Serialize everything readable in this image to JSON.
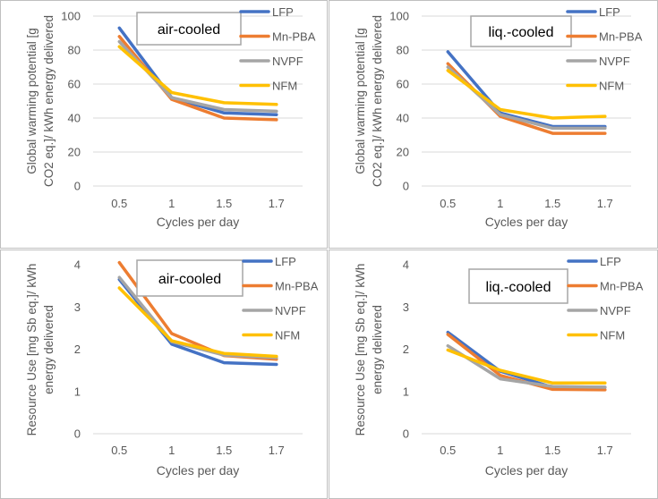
{
  "colors": {
    "LFP": "#4472C4",
    "Mn-PBA": "#ED7D31",
    "NVPF": "#A5A5A5",
    "NFM": "#FFC000",
    "panel_border": "#BFBFBF",
    "gridline": "#D9D9D9",
    "text": "#595959",
    "title_border": "#A6A6A6"
  },
  "chart_data": [
    {
      "type": "line",
      "title": "air-cooled",
      "xlabel": "Cycles per day",
      "ylabel_lines": [
        "Global warming potential [g",
        "CO2 eq.]/ kWh energy delivered"
      ],
      "categories": [
        "0.5",
        "1",
        "1.5",
        "1.7"
      ],
      "yticks": [
        "0",
        "20",
        "40",
        "60",
        "80",
        "100"
      ],
      "ylim": [
        0,
        100
      ],
      "grid": true,
      "legend": "top-right",
      "series": [
        {
          "name": "LFP",
          "values": [
            93,
            52,
            43,
            42
          ]
        },
        {
          "name": "Mn-PBA",
          "values": [
            88,
            51,
            40,
            39
          ]
        },
        {
          "name": "NVPF",
          "values": [
            85,
            52,
            45,
            44
          ]
        },
        {
          "name": "NFM",
          "values": [
            82,
            55,
            49,
            48
          ]
        }
      ]
    },
    {
      "type": "line",
      "title": "liq.-cooled",
      "xlabel": "Cycles per day",
      "ylabel_lines": [
        "Global warming potential [g",
        "CO2 eq.]/ kWh energy delivered"
      ],
      "categories": [
        "0.5",
        "1",
        "1.5",
        "1.7"
      ],
      "yticks": [
        "0",
        "20",
        "40",
        "60",
        "80",
        "100"
      ],
      "ylim": [
        0,
        100
      ],
      "grid": true,
      "legend": "top-right",
      "series": [
        {
          "name": "LFP",
          "values": [
            79,
            43,
            35,
            35
          ]
        },
        {
          "name": "Mn-PBA",
          "values": [
            72,
            41,
            31,
            31
          ]
        },
        {
          "name": "NVPF",
          "values": [
            70,
            42,
            34,
            34
          ]
        },
        {
          "name": "NFM",
          "values": [
            68,
            45,
            40,
            41
          ]
        }
      ]
    },
    {
      "type": "line",
      "title": "air-cooled",
      "xlabel": "Cycles per day",
      "ylabel_lines": [
        "Resource Use [mg Sb eq.]/ kWh",
        "energy delivered"
      ],
      "categories": [
        "0.5",
        "1",
        "1.5",
        "1.7"
      ],
      "yticks": [
        "0",
        "1",
        "2",
        "3",
        "4"
      ],
      "ylim": [
        0,
        4
      ],
      "grid": false,
      "legend": "top-right",
      "series": [
        {
          "name": "LFP",
          "values": [
            3.65,
            2.12,
            1.68,
            1.64
          ]
        },
        {
          "name": "Mn-PBA",
          "values": [
            4.05,
            2.37,
            1.85,
            1.76
          ]
        },
        {
          "name": "NVPF",
          "values": [
            3.7,
            2.18,
            1.86,
            1.8
          ]
        },
        {
          "name": "NFM",
          "values": [
            3.45,
            2.2,
            1.9,
            1.83
          ]
        }
      ]
    },
    {
      "type": "line",
      "title": "liq.-cooled",
      "xlabel": "Cycles per day",
      "ylabel_lines": [
        "Resource Use [mg Sb eq.]/ kWh",
        "energy delivered"
      ],
      "categories": [
        "0.5",
        "1",
        "1.5",
        "1.7"
      ],
      "yticks": [
        "0",
        "1",
        "2",
        "3",
        "4"
      ],
      "ylim": [
        0,
        4
      ],
      "grid": false,
      "legend": "top-right",
      "series": [
        {
          "name": "LFP",
          "values": [
            2.4,
            1.48,
            1.1,
            1.1
          ]
        },
        {
          "name": "Mn-PBA",
          "values": [
            2.35,
            1.38,
            1.05,
            1.04
          ]
        },
        {
          "name": "NVPF",
          "values": [
            2.08,
            1.3,
            1.12,
            1.1
          ]
        },
        {
          "name": "NFM",
          "values": [
            1.98,
            1.5,
            1.2,
            1.2
          ]
        }
      ]
    }
  ]
}
